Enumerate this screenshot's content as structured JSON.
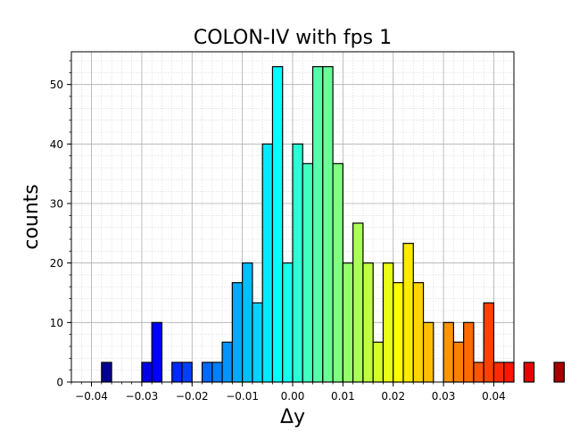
{
  "chart_data": {
    "type": "bar",
    "title": "COLON-IV with fps 1",
    "xlabel": "Δy",
    "ylabel": "counts",
    "xlim": [
      -0.044,
      0.044
    ],
    "ylim": [
      0,
      55.5
    ],
    "grid": true,
    "bin_width": 0.002,
    "bin_start": -0.04,
    "colormap": "jet",
    "x_ticks": [
      -0.04,
      -0.03,
      -0.02,
      -0.01,
      0.0,
      0.01,
      0.02,
      0.03,
      0.04
    ],
    "x_tick_labels": [
      "−0.04",
      "−0.03",
      "−0.02",
      "−0.01",
      "0.00",
      "0.01",
      "0.02",
      "0.03",
      "0.04"
    ],
    "y_ticks": [
      0,
      10,
      20,
      30,
      40,
      50
    ],
    "y_tick_labels": [
      "0",
      "10",
      "20",
      "30",
      "40",
      "50"
    ],
    "values": [
      0,
      3.3,
      0,
      0,
      0,
      3.3,
      10,
      0,
      3.3,
      3.3,
      0,
      3.3,
      3.3,
      6.7,
      16.7,
      20,
      13.3,
      40,
      53,
      20,
      40,
      36.7,
      53,
      53,
      36.7,
      20,
      26.7,
      20,
      6.7,
      20,
      16.7,
      23.3,
      16.7,
      10,
      0,
      10,
      6.7,
      10,
      3.3,
      13.3,
      3.3,
      3.3,
      0,
      3.3,
      0,
      0,
      3.3,
      0,
      0
    ]
  }
}
